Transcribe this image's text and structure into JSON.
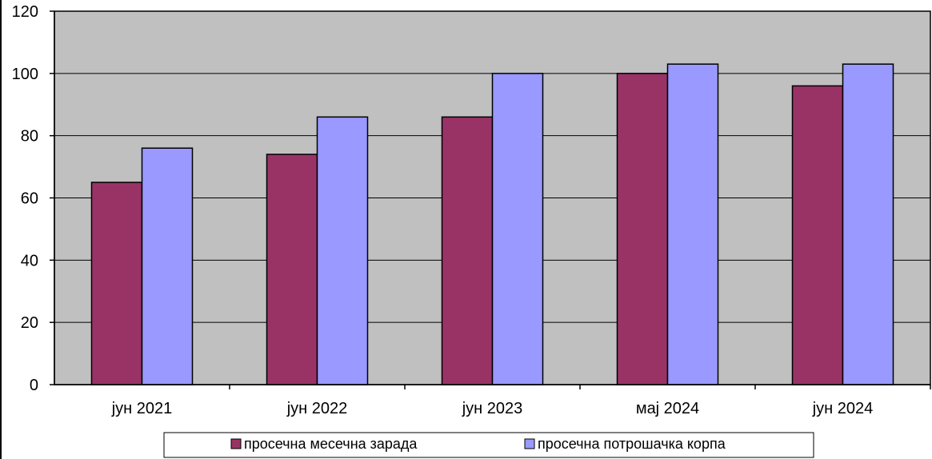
{
  "chart_data": {
    "type": "bar",
    "title": "",
    "xlabel": "",
    "ylabel": "",
    "categories": [
      "јун 2021",
      "јун 2022",
      "јун 2023",
      "мај 2024",
      "јун 2024"
    ],
    "series": [
      {
        "name": "просечна месечна зарада",
        "values": [
          65,
          74,
          86,
          100,
          96
        ]
      },
      {
        "name": "просечна потрошачка корпа",
        "values": [
          76,
          86,
          100,
          103,
          103
        ]
      }
    ],
    "ylim": [
      0,
      120
    ],
    "yticks": [
      0,
      20,
      40,
      60,
      80,
      100,
      120
    ],
    "grid": true,
    "legend_position": "bottom",
    "colors": {
      "series": [
        "#993366",
        "#9999ff"
      ],
      "plot_background": "#c0c0c0",
      "gridline": "#000000",
      "bar_border": "#000000"
    }
  }
}
